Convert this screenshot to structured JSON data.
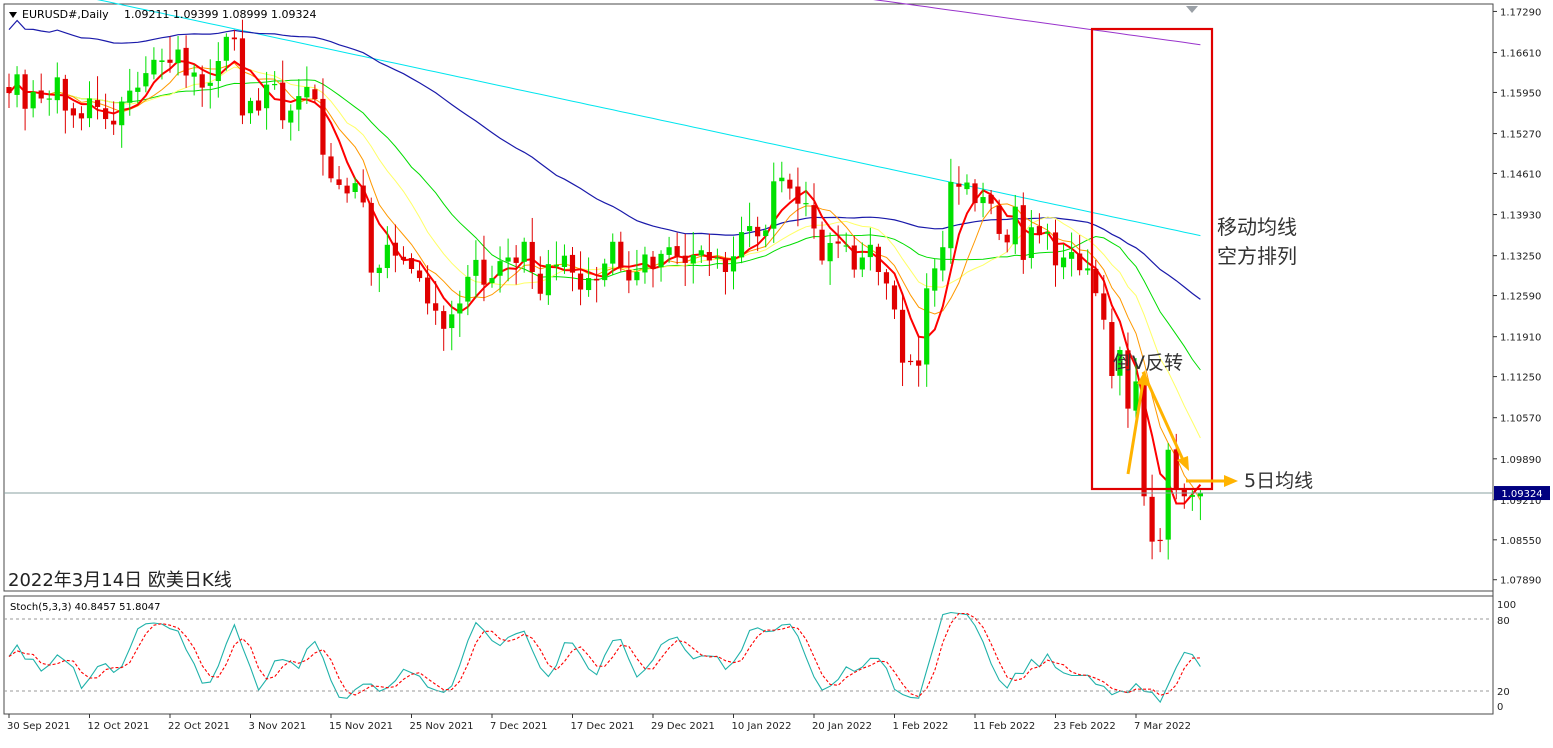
{
  "header": {
    "symbol": "EURUSD#,Daily",
    "ohlc": "1.09211 1.09399 1.08999 1.09324"
  },
  "annotations": {
    "date_label": "2022年3月14日 欧美日K线",
    "ma_arrangement_line1": "移动均线",
    "ma_arrangement_line2": "空方排列",
    "inverted_v": "倒V反转",
    "ma5": "5日均线"
  },
  "indicator": {
    "label": "Stoch(5,3,3) 40.8457 51.8047",
    "levels": [
      "100",
      "80",
      "20",
      "0"
    ]
  },
  "colors": {
    "bull": "#00e000",
    "bear": "#e00000",
    "ma5": "#ff0000",
    "ma10": "#ff9900",
    "ma20": "#ffff66",
    "ma30": "#00dd00",
    "ma60": "#1a1aaa",
    "ma120": "#00e5ee",
    "ma250": "#9933cc",
    "stoch_main": "#20b2aa",
    "stoch_signal": "#ff0000",
    "highlight_box": "#e00000",
    "arrow": "#ffb300",
    "price_tag": "#000080"
  },
  "chart_data": {
    "type": "candlestick",
    "price_axis": {
      "ticks": [
        "1.17290",
        "1.16610",
        "1.15950",
        "1.15270",
        "1.14610",
        "1.13930",
        "1.13250",
        "1.12590",
        "1.11910",
        "1.11250",
        "1.10570",
        "1.09890",
        "1.09210",
        "1.08550",
        "1.07890"
      ],
      "ylim": [
        1.0772,
        1.1738
      ],
      "current": "1.09324"
    },
    "x_labels": [
      "30 Sep 2021",
      "12 Oct 2021",
      "22 Oct 2021",
      "3 Nov 2021",
      "15 Nov 2021",
      "25 Nov 2021",
      "7 Dec 2021",
      "17 Dec 2021",
      "29 Dec 2021",
      "10 Jan 2022",
      "20 Jan 2022",
      "1 Feb 2022",
      "11 Feb 2022",
      "23 Feb 2022",
      "7 Mar 2022"
    ],
    "closes": [
      1.1594,
      1.1625,
      1.1568,
      1.1596,
      1.1585,
      1.1585,
      1.162,
      1.1565,
      1.1557,
      1.1552,
      1.1585,
      1.1571,
      1.1551,
      1.1542,
      1.158,
      1.1598,
      1.1603,
      1.1627,
      1.1649,
      1.1648,
      1.1644,
      1.1666,
      1.1623,
      1.1628,
      1.1603,
      1.1611,
      1.1647,
      1.1687,
      1.1683,
      1.1557,
      1.1581,
      1.1565,
      1.1608,
      1.1609,
      1.1549,
      1.1565,
      1.1589,
      1.1604,
      1.1584,
      1.1492,
      1.1453,
      1.1442,
      1.1428,
      1.1445,
      1.1413,
      1.1297,
      1.1305,
      1.1343,
      1.1325,
      1.1318,
      1.1303,
      1.1288,
      1.1246,
      1.1234,
      1.1204,
      1.1228,
      1.1246,
      1.129,
      1.1318,
      1.1277,
      1.1288,
      1.1316,
      1.1322,
      1.1313,
      1.1348,
      1.1298,
      1.1262,
      1.1311,
      1.131,
      1.1325,
      1.1297,
      1.1269,
      1.1288,
      1.1284,
      1.1312,
      1.1348,
      1.1305,
      1.1284,
      1.1298,
      1.1327,
      1.1303,
      1.1328,
      1.1339,
      1.1324,
      1.1313,
      1.1326,
      1.1334,
      1.1317,
      1.1322,
      1.1298,
      1.1324,
      1.1364,
      1.1374,
      1.1357,
      1.1367,
      1.1448,
      1.1454,
      1.1436,
      1.1411,
      1.1412,
      1.137,
      1.1317,
      1.1346,
      1.1345,
      1.1342,
      1.1302,
      1.1322,
      1.1343,
      1.1298,
      1.1279,
      1.1236,
      1.1148,
      1.1149,
      1.1143,
      1.1271,
      1.1304,
      1.1339,
      1.1447,
      1.1439,
      1.1446,
      1.1412,
      1.1422,
      1.1411,
      1.1361,
      1.1347,
      1.1406,
      1.1318,
      1.1372,
      1.1359,
      1.1364,
      1.1309,
      1.1322,
      1.1331,
      1.1301,
      1.1304,
      1.1263,
      1.1219,
      1.1126,
      1.1169,
      1.1072,
      1.1117,
      1.0927,
      1.0852,
      1.0853,
      1.1004,
      1.0939,
      1.0927,
      1.0929,
      1.0932
    ]
  }
}
